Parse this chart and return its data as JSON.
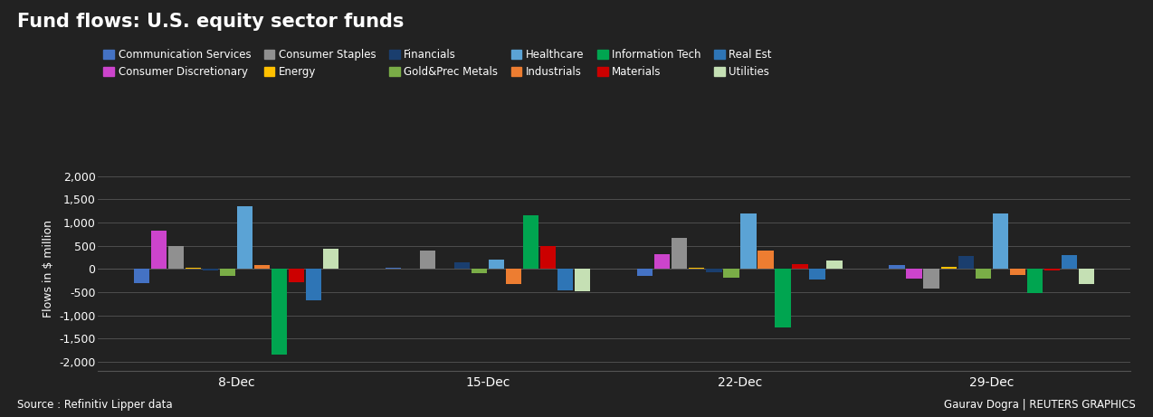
{
  "title": "Fund flows: U.S. equity sector funds",
  "ylabel": "Flows in $ million",
  "source_text": "Source : Refinitiv Lipper data",
  "credit_text": "Gaurav Dogra | REUTERS GRAPHICS",
  "background_color": "#222222",
  "plot_background_color": "#222222",
  "grid_color": "#555555",
  "text_color": "#ffffff",
  "ylim": [
    -2200,
    2200
  ],
  "yticks": [
    -2000,
    -1500,
    -1000,
    -500,
    0,
    500,
    1000,
    1500,
    2000
  ],
  "weeks": [
    "8-Dec",
    "15-Dec",
    "22-Dec",
    "29-Dec"
  ],
  "sectors": [
    "Communication Services",
    "Consumer Discretionary",
    "Consumer Staples",
    "Energy",
    "Financials",
    "Gold&Prec Metals",
    "Healthcare",
    "Industrials",
    "Information Tech",
    "Materials",
    "Real Est",
    "Utilities"
  ],
  "colors": [
    "#4472c4",
    "#cc44cc",
    "#909090",
    "#ffc000",
    "#1a3e6e",
    "#7aad47",
    "#5ba3d5",
    "#ed7d31",
    "#00a550",
    "#cc0000",
    "#2e75b6",
    "#c5e0b4"
  ],
  "data": {
    "8-Dec": [
      -300,
      820,
      500,
      30,
      -30,
      -150,
      1350,
      80,
      -1850,
      -280,
      -680,
      430
    ],
    "15-Dec": [
      20,
      10,
      400,
      10,
      150,
      -100,
      200,
      -320,
      1150,
      490,
      -460,
      -480
    ],
    "22-Dec": [
      -150,
      310,
      670,
      30,
      -80,
      -190,
      1200,
      390,
      -1250,
      100,
      -220,
      190
    ],
    "29-Dec": [
      80,
      -200,
      -430,
      50,
      270,
      -200,
      1200,
      -120,
      -520,
      -40,
      300,
      -330
    ]
  }
}
